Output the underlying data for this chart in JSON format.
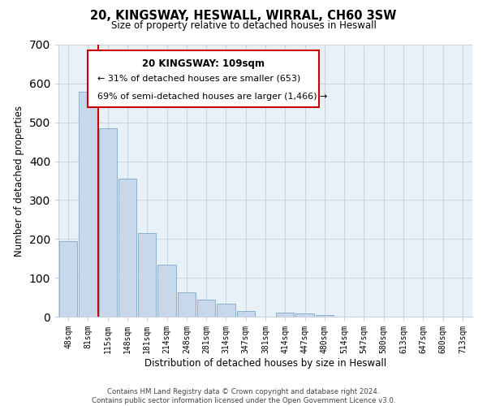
{
  "title": "20, KINGSWAY, HESWALL, WIRRAL, CH60 3SW",
  "subtitle": "Size of property relative to detached houses in Heswall",
  "xlabel": "Distribution of detached houses by size in Heswall",
  "ylabel": "Number of detached properties",
  "bin_labels": [
    "48sqm",
    "81sqm",
    "115sqm",
    "148sqm",
    "181sqm",
    "214sqm",
    "248sqm",
    "281sqm",
    "314sqm",
    "347sqm",
    "381sqm",
    "414sqm",
    "447sqm",
    "480sqm",
    "514sqm",
    "547sqm",
    "580sqm",
    "613sqm",
    "647sqm",
    "680sqm",
    "713sqm"
  ],
  "bar_values": [
    195,
    578,
    485,
    355,
    215,
    133,
    63,
    43,
    33,
    15,
    0,
    10,
    9,
    4,
    0,
    0,
    0,
    0,
    0,
    0,
    0
  ],
  "bar_color": "#c8d8ec",
  "bar_edge_color": "#8ab0cc",
  "vline_x_index": 1.5,
  "vline_color": "#cc0000",
  "ylim": [
    0,
    700
  ],
  "yticks": [
    0,
    100,
    200,
    300,
    400,
    500,
    600,
    700
  ],
  "annotation_title": "20 KINGSWAY: 109sqm",
  "annotation_line1": "← 31% of detached houses are smaller (653)",
  "annotation_line2": "69% of semi-detached houses are larger (1,466) →",
  "footer_line1": "Contains HM Land Registry data © Crown copyright and database right 2024.",
  "footer_line2": "Contains public sector information licensed under the Open Government Licence v3.0.",
  "bg_color": "#ffffff",
  "grid_color": "#c8d4e0"
}
